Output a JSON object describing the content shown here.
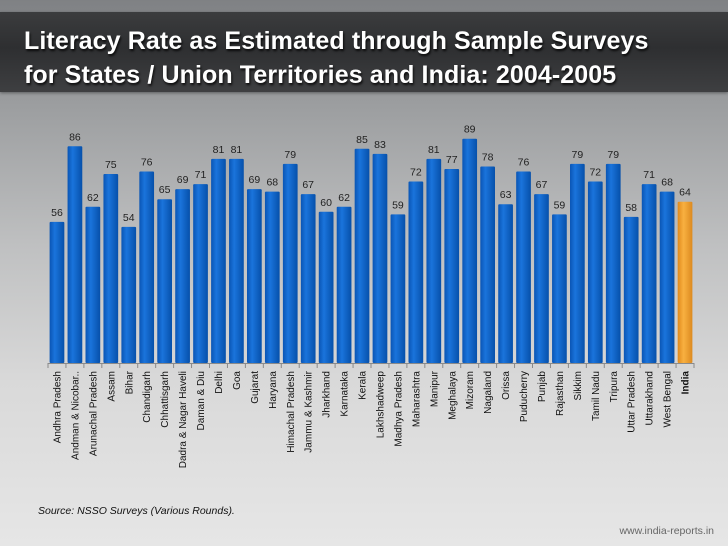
{
  "title_lines": [
    "Literacy Rate as Estimated through Sample Surveys",
    "for States / Union Territories and India: 2004-2005"
  ],
  "footer": {
    "source": "Source: NSSO Surveys (Various Rounds).",
    "website": "www.india-reports.in"
  },
  "colors": {
    "bar": "#0a62c8",
    "bar_highlight": "#f0a030"
  },
  "chart_data": {
    "type": "bar",
    "title": "Literacy Rate as Estimated through Sample Surveys for States / Union Territories and India: 2004-2005",
    "xlabel": "",
    "ylabel": "",
    "ylim": [
      0,
      100
    ],
    "grid": false,
    "legend": "none",
    "highlight_category": "India",
    "categories": [
      "Andhra Pradesh",
      "Andman & Nicobar..",
      "Arunachal Pradesh",
      "Assam",
      "Bihar",
      "Chandigarh",
      "Chhattisgarh",
      "Dadra & Nagar Haveli",
      "Daman & Diu",
      "Delhi",
      "Goa",
      "Gujarat",
      "Haryana",
      "Himachal Pradesh",
      "Jammu & Kashmir",
      "Jharkhand",
      "Karnataka",
      "Kerala",
      "Lakhshadweep",
      "Madhya Pradesh",
      "Maharashtra",
      "Manipur",
      "Meghalaya",
      "Mizoram",
      "Nagaland",
      "Orissa",
      "Puducherry",
      "Punjab",
      "Rajasthan",
      "Sikkim",
      "Tamil Nadu",
      "Tripura",
      "Uttar Pradesh",
      "Uttarakhand",
      "West Bengal",
      "India"
    ],
    "values": [
      56,
      86,
      62,
      75,
      54,
      76,
      65,
      69,
      71,
      81,
      81,
      69,
      68,
      79,
      67,
      60,
      62,
      85,
      83,
      59,
      72,
      81,
      77,
      89,
      78,
      63,
      76,
      67,
      59,
      79,
      72,
      79,
      58,
      71,
      68,
      64
    ]
  }
}
